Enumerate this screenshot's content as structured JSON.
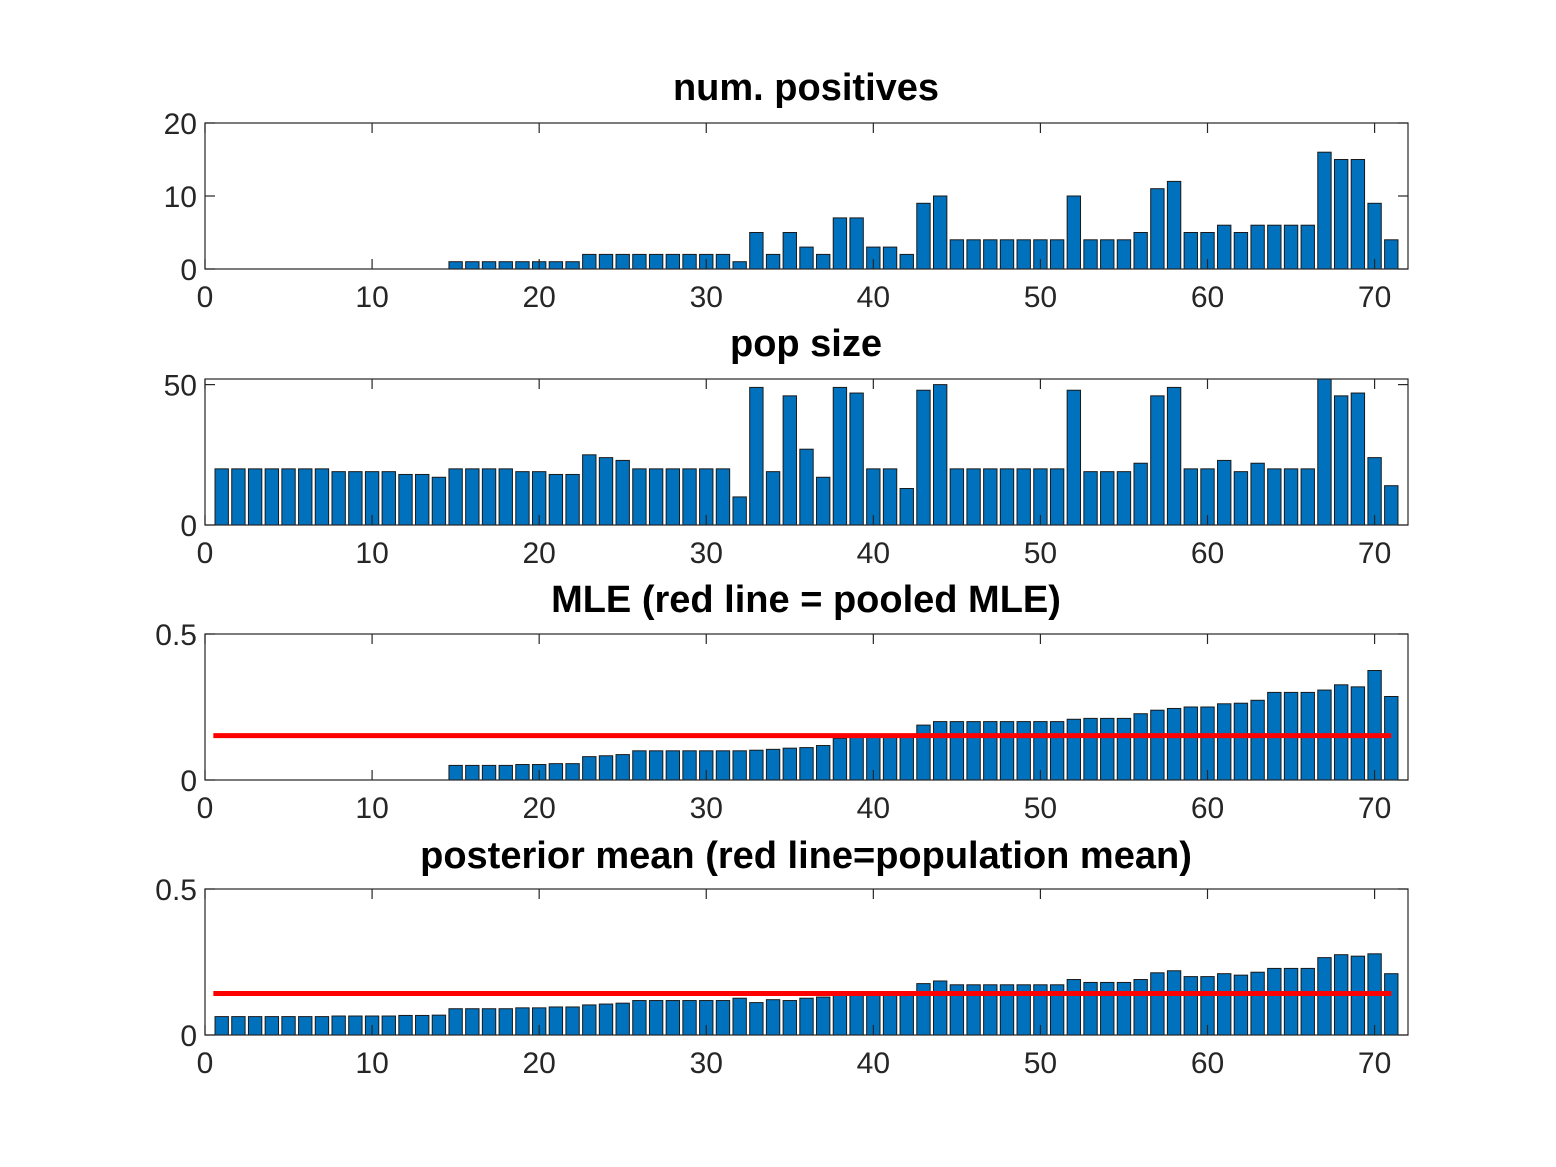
{
  "figure": {
    "colors": {
      "bar": "#0072BD",
      "reference_line": "#FF0000",
      "axis": "#262626"
    }
  },
  "chart_data": [
    {
      "type": "bar",
      "title": "num. positives",
      "xlim": [
        0,
        72
      ],
      "ylim": [
        0,
        20
      ],
      "xticks": [
        0,
        10,
        20,
        30,
        40,
        50,
        60,
        70
      ],
      "yticks": [
        0,
        10,
        20
      ],
      "x": [
        1,
        2,
        3,
        4,
        5,
        6,
        7,
        8,
        9,
        10,
        11,
        12,
        13,
        14,
        15,
        16,
        17,
        18,
        19,
        20,
        21,
        22,
        23,
        24,
        25,
        26,
        27,
        28,
        29,
        30,
        31,
        32,
        33,
        34,
        35,
        36,
        37,
        38,
        39,
        40,
        41,
        42,
        43,
        44,
        45,
        46,
        47,
        48,
        49,
        50,
        51,
        52,
        53,
        54,
        55,
        56,
        57,
        58,
        59,
        60,
        61,
        62,
        63,
        64,
        65,
        66,
        67,
        68,
        69,
        70,
        71
      ],
      "values": [
        0,
        0,
        0,
        0,
        0,
        0,
        0,
        0,
        0,
        0,
        0,
        0,
        0,
        0,
        1,
        1,
        1,
        1,
        1,
        1,
        1,
        1,
        2,
        2,
        2,
        2,
        2,
        2,
        2,
        2,
        2,
        1,
        5,
        2,
        5,
        3,
        2,
        7,
        7,
        3,
        3,
        2,
        9,
        10,
        4,
        4,
        4,
        4,
        4,
        4,
        4,
        10,
        4,
        4,
        4,
        5,
        11,
        12,
        5,
        5,
        6,
        5,
        6,
        6,
        6,
        6,
        16,
        15,
        15,
        9,
        4
      ]
    },
    {
      "type": "bar",
      "title": "pop size",
      "xlim": [
        0,
        72
      ],
      "ylim": [
        0,
        52
      ],
      "xticks": [
        0,
        10,
        20,
        30,
        40,
        50,
        60,
        70
      ],
      "yticks": [
        0,
        50
      ],
      "x": [
        1,
        2,
        3,
        4,
        5,
        6,
        7,
        8,
        9,
        10,
        11,
        12,
        13,
        14,
        15,
        16,
        17,
        18,
        19,
        20,
        21,
        22,
        23,
        24,
        25,
        26,
        27,
        28,
        29,
        30,
        31,
        32,
        33,
        34,
        35,
        36,
        37,
        38,
        39,
        40,
        41,
        42,
        43,
        44,
        45,
        46,
        47,
        48,
        49,
        50,
        51,
        52,
        53,
        54,
        55,
        56,
        57,
        58,
        59,
        60,
        61,
        62,
        63,
        64,
        65,
        66,
        67,
        68,
        69,
        70,
        71
      ],
      "values": [
        20,
        20,
        20,
        20,
        20,
        20,
        20,
        19,
        19,
        19,
        19,
        18,
        18,
        17,
        20,
        20,
        20,
        20,
        19,
        19,
        18,
        18,
        25,
        24,
        23,
        20,
        20,
        20,
        20,
        20,
        20,
        10,
        49,
        19,
        46,
        27,
        17,
        49,
        47,
        20,
        20,
        13,
        48,
        50,
        20,
        20,
        20,
        20,
        20,
        20,
        20,
        48,
        19,
        19,
        19,
        22,
        46,
        49,
        20,
        20,
        23,
        19,
        22,
        20,
        20,
        20,
        52,
        46,
        47,
        24,
        14
      ]
    },
    {
      "type": "bar",
      "title": "MLE (red line = pooled MLE)",
      "xlim": [
        0,
        72
      ],
      "ylim": [
        0,
        0.5
      ],
      "xticks": [
        0,
        10,
        20,
        30,
        40,
        50,
        60,
        70
      ],
      "yticks": [
        0,
        0.5
      ],
      "x": [
        1,
        2,
        3,
        4,
        5,
        6,
        7,
        8,
        9,
        10,
        11,
        12,
        13,
        14,
        15,
        16,
        17,
        18,
        19,
        20,
        21,
        22,
        23,
        24,
        25,
        26,
        27,
        28,
        29,
        30,
        31,
        32,
        33,
        34,
        35,
        36,
        37,
        38,
        39,
        40,
        41,
        42,
        43,
        44,
        45,
        46,
        47,
        48,
        49,
        50,
        51,
        52,
        53,
        54,
        55,
        56,
        57,
        58,
        59,
        60,
        61,
        62,
        63,
        64,
        65,
        66,
        67,
        68,
        69,
        70,
        71
      ],
      "values": [
        0,
        0,
        0,
        0,
        0,
        0,
        0,
        0,
        0,
        0,
        0,
        0,
        0,
        0,
        0.05,
        0.05,
        0.05,
        0.05,
        0.053,
        0.053,
        0.056,
        0.056,
        0.08,
        0.083,
        0.087,
        0.1,
        0.1,
        0.1,
        0.1,
        0.1,
        0.1,
        0.1,
        0.102,
        0.105,
        0.109,
        0.111,
        0.118,
        0.143,
        0.149,
        0.15,
        0.15,
        0.154,
        0.188,
        0.2,
        0.2,
        0.2,
        0.2,
        0.2,
        0.2,
        0.2,
        0.2,
        0.208,
        0.211,
        0.211,
        0.211,
        0.227,
        0.239,
        0.245,
        0.25,
        0.25,
        0.261,
        0.263,
        0.273,
        0.3,
        0.3,
        0.3,
        0.308,
        0.326,
        0.319,
        0.375,
        0.286
      ],
      "reference_line": {
        "value": 0.152,
        "x_range": [
          0.5,
          71
        ]
      }
    },
    {
      "type": "bar",
      "title": "posterior mean (red line=population mean)",
      "xlim": [
        0,
        72
      ],
      "ylim": [
        0,
        0.5
      ],
      "xticks": [
        0,
        10,
        20,
        30,
        40,
        50,
        60,
        70
      ],
      "yticks": [
        0,
        0.5
      ],
      "x": [
        1,
        2,
        3,
        4,
        5,
        6,
        7,
        8,
        9,
        10,
        11,
        12,
        13,
        14,
        15,
        16,
        17,
        18,
        19,
        20,
        21,
        22,
        23,
        24,
        25,
        26,
        27,
        28,
        29,
        30,
        31,
        32,
        33,
        34,
        35,
        36,
        37,
        38,
        39,
        40,
        41,
        42,
        43,
        44,
        45,
        46,
        47,
        48,
        49,
        50,
        51,
        52,
        53,
        54,
        55,
        56,
        57,
        58,
        59,
        60,
        61,
        62,
        63,
        64,
        65,
        66,
        67,
        68,
        69,
        70,
        71
      ],
      "values": [
        0.063,
        0.063,
        0.063,
        0.063,
        0.063,
        0.063,
        0.063,
        0.065,
        0.065,
        0.065,
        0.065,
        0.067,
        0.067,
        0.068,
        0.09,
        0.09,
        0.09,
        0.09,
        0.093,
        0.093,
        0.096,
        0.096,
        0.103,
        0.106,
        0.109,
        0.118,
        0.118,
        0.118,
        0.118,
        0.118,
        0.118,
        0.126,
        0.111,
        0.121,
        0.118,
        0.126,
        0.13,
        0.14,
        0.145,
        0.145,
        0.145,
        0.143,
        0.176,
        0.185,
        0.172,
        0.172,
        0.172,
        0.172,
        0.172,
        0.172,
        0.172,
        0.19,
        0.18,
        0.18,
        0.18,
        0.19,
        0.213,
        0.22,
        0.2,
        0.2,
        0.21,
        0.205,
        0.215,
        0.228,
        0.228,
        0.228,
        0.265,
        0.275,
        0.27,
        0.278,
        0.21
      ],
      "reference_line": {
        "value": 0.142,
        "x_range": [
          0.5,
          71
        ]
      }
    }
  ]
}
